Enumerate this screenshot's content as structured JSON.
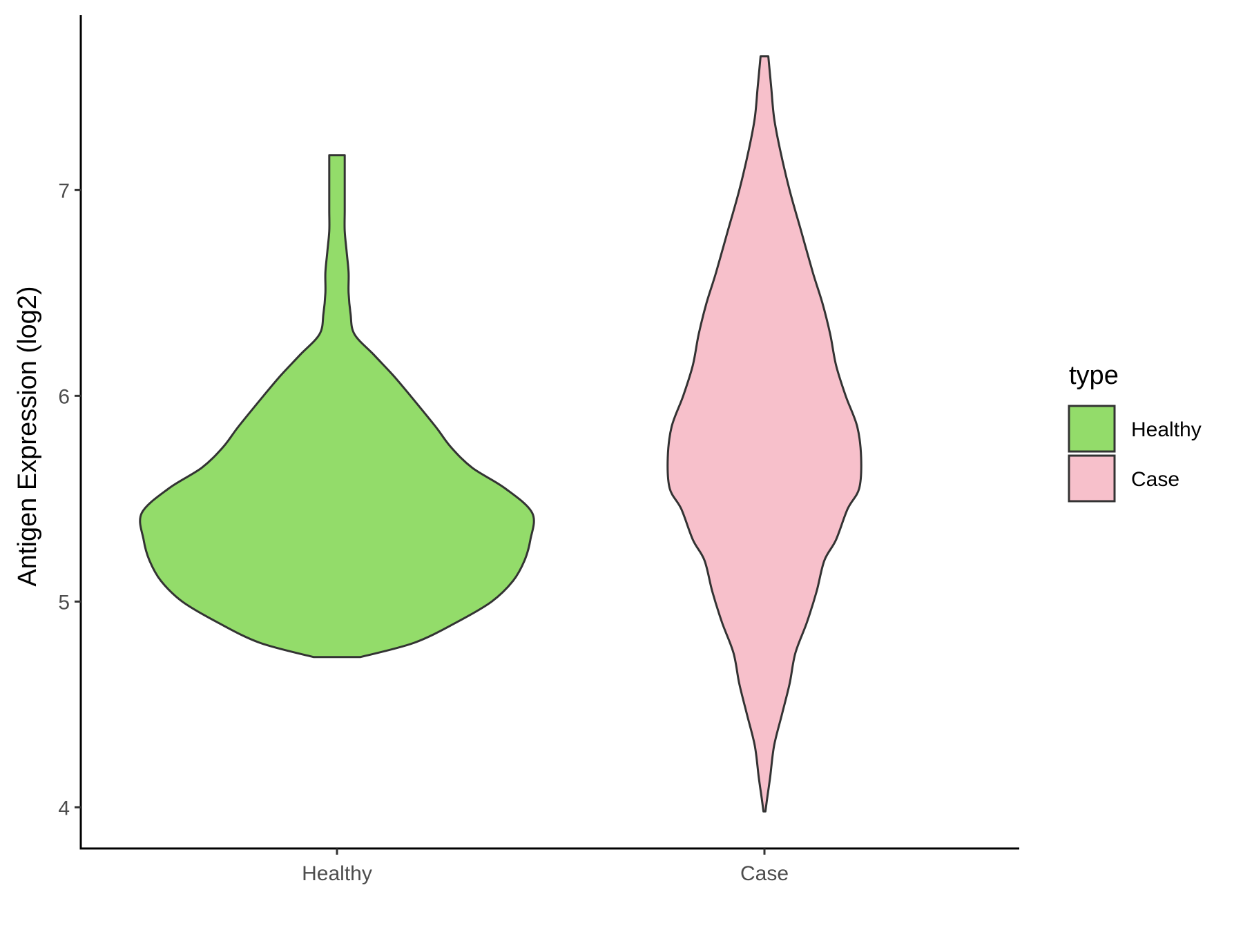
{
  "chart_data": {
    "type": "violin",
    "title": "",
    "xlabel": "",
    "ylabel": "Antigen Expression (log2)",
    "ylim": [
      3.8,
      7.85
    ],
    "yticks": [
      4,
      5,
      6,
      7
    ],
    "grid": false,
    "legend": {
      "title": "type",
      "placement": "right",
      "entries": [
        {
          "label": "Healthy",
          "color": "#93DC6A"
        },
        {
          "label": "Case",
          "color": "#F7C0CB"
        }
      ]
    },
    "categories": [
      "Healthy",
      "Case"
    ],
    "series": [
      {
        "name": "Healthy",
        "color": "#93DC6A",
        "min": 4.73,
        "max": 7.17,
        "density_profile": [
          [
            4.73,
            0.12
          ],
          [
            4.8,
            0.4
          ],
          [
            4.9,
            0.62
          ],
          [
            5.0,
            0.8
          ],
          [
            5.1,
            0.91
          ],
          [
            5.2,
            0.97
          ],
          [
            5.3,
            1.0
          ],
          [
            5.43,
            1.01
          ],
          [
            5.55,
            0.87
          ],
          [
            5.65,
            0.7
          ],
          [
            5.75,
            0.59
          ],
          [
            5.85,
            0.51
          ],
          [
            6.0,
            0.38
          ],
          [
            6.1,
            0.29
          ],
          [
            6.2,
            0.19
          ],
          [
            6.3,
            0.09
          ],
          [
            6.4,
            0.07
          ],
          [
            6.5,
            0.06
          ],
          [
            6.6,
            0.06
          ],
          [
            6.7,
            0.05
          ],
          [
            6.8,
            0.04
          ],
          [
            6.9,
            0.04
          ],
          [
            7.0,
            0.04
          ],
          [
            7.1,
            0.04
          ],
          [
            7.17,
            0.04
          ]
        ]
      },
      {
        "name": "Case",
        "color": "#F7C0CB",
        "min": 3.98,
        "max": 7.65,
        "density_profile": [
          [
            3.98,
            0.005
          ],
          [
            4.05,
            0.015
          ],
          [
            4.15,
            0.03
          ],
          [
            4.3,
            0.05
          ],
          [
            4.45,
            0.09
          ],
          [
            4.6,
            0.13
          ],
          [
            4.75,
            0.16
          ],
          [
            4.9,
            0.22
          ],
          [
            5.05,
            0.27
          ],
          [
            5.2,
            0.31
          ],
          [
            5.3,
            0.37
          ],
          [
            5.45,
            0.43
          ],
          [
            5.55,
            0.49
          ],
          [
            5.7,
            0.5
          ],
          [
            5.85,
            0.48
          ],
          [
            6.0,
            0.42
          ],
          [
            6.15,
            0.37
          ],
          [
            6.3,
            0.34
          ],
          [
            6.45,
            0.3
          ],
          [
            6.6,
            0.25
          ],
          [
            6.8,
            0.19
          ],
          [
            7.0,
            0.13
          ],
          [
            7.2,
            0.08
          ],
          [
            7.35,
            0.05
          ],
          [
            7.5,
            0.035
          ],
          [
            7.65,
            0.02
          ]
        ]
      }
    ]
  }
}
